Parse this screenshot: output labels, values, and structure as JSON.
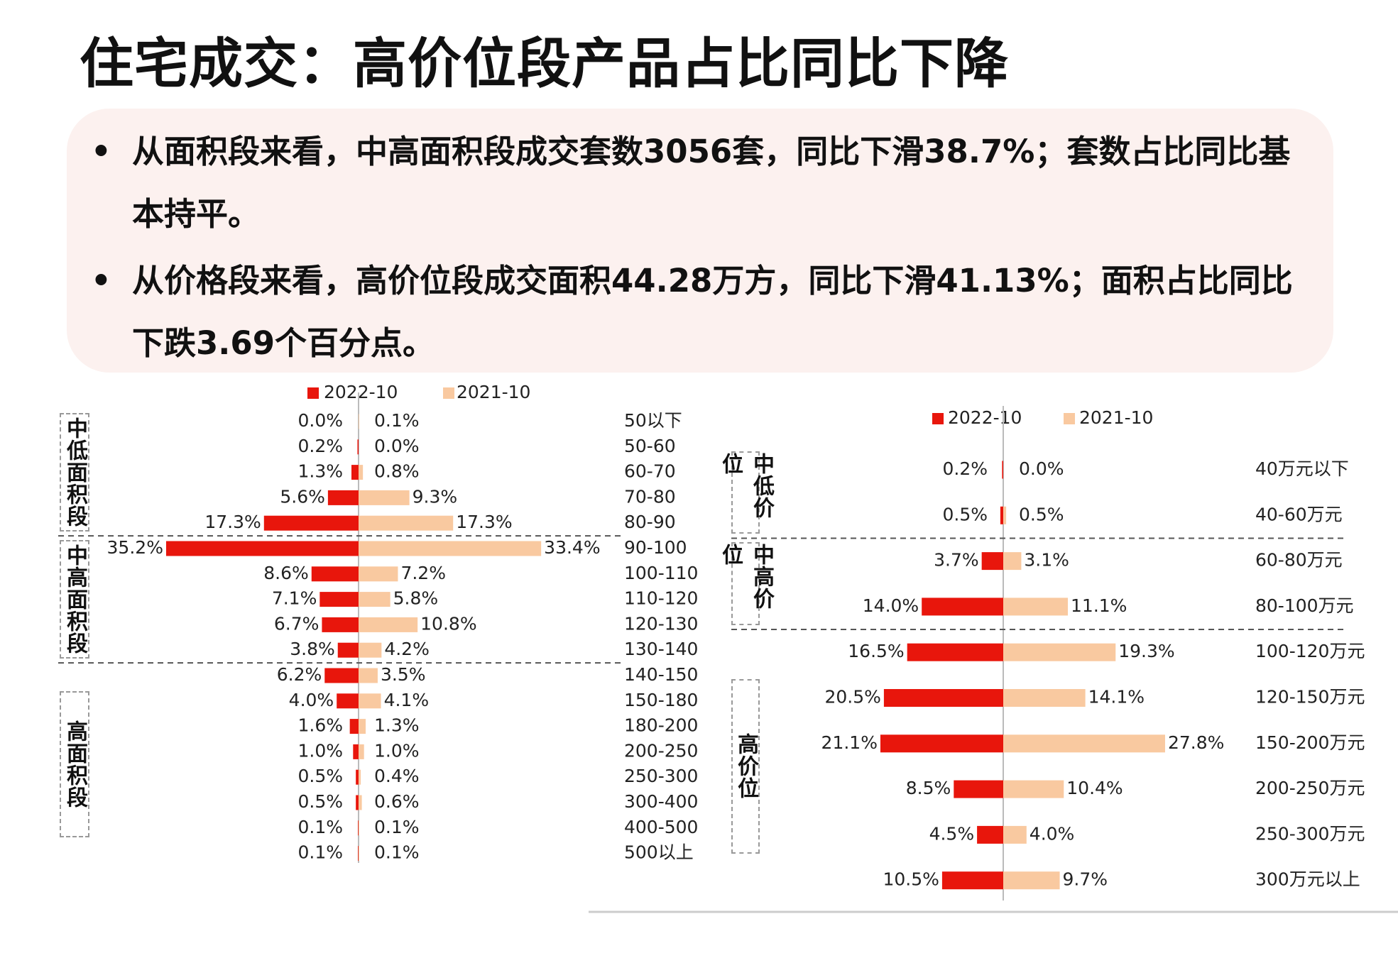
{
  "title": "住宅成交：高价位段产品占比同比下降",
  "bullets": [
    "从面积段来看，中高面积段成交套数3056套，同比下滑38.7%；套数占比同比基本持平。",
    "从价格段来看，高价位段成交面积44.28万方，同比下滑41.13%；面积占比同比下跌3.69个百分点。"
  ],
  "chart_data": [
    {
      "type": "butterfly",
      "groups": [
        {
          "label": "中低面积段",
          "categories": [
            "50以下",
            "50-60",
            "60-70",
            "70-80",
            "80-90"
          ]
        },
        {
          "label": "中高面积段",
          "categories": [
            "90-100",
            "100-110",
            "110-120",
            "120-130",
            "130-140"
          ]
        },
        {
          "label": "高面积段",
          "categories": [
            "140-150",
            "150-180",
            "180-200",
            "200-250",
            "250-300",
            "300-400",
            "400-500",
            "500以上"
          ]
        }
      ],
      "series": [
        {
          "name": "2022-10",
          "color": "#e8160c",
          "values": [
            0.0,
            0.2,
            1.3,
            5.6,
            17.3,
            35.2,
            8.6,
            7.1,
            6.7,
            3.8,
            6.2,
            4.0,
            1.6,
            1.0,
            0.5,
            0.5,
            0.1,
            0.1
          ],
          "value_labels": [
            "0.0%",
            "0.2%",
            "1.3%",
            "5.6%",
            "17.3%",
            "35.2%",
            "8.6%",
            "7.1%",
            "6.7%",
            "3.8%",
            "6.2%",
            "4.0%",
            "1.6%",
            "1.0%",
            "0.5%",
            "0.5%",
            "0.1%",
            "0.1%"
          ]
        },
        {
          "name": "2021-10",
          "color": "#f9c9a0",
          "values": [
            0.1,
            0.0,
            0.8,
            9.3,
            17.3,
            33.4,
            7.2,
            5.8,
            10.8,
            4.2,
            3.5,
            4.1,
            1.3,
            1.0,
            0.4,
            0.6,
            0.1,
            0.1
          ],
          "value_labels": [
            "0.1%",
            "0.0%",
            "0.8%",
            "9.3%",
            "17.3%",
            "33.4%",
            "7.2%",
            "5.8%",
            "10.8%",
            "4.2%",
            "3.5%",
            "4.1%",
            "1.3%",
            "1.0%",
            "0.4%",
            "0.6%",
            "0.1%",
            "0.1%"
          ]
        }
      ]
    },
    {
      "type": "butterfly",
      "groups": [
        {
          "label": "中低价位",
          "categories": [
            "40万元以下",
            "40-60万元"
          ]
        },
        {
          "label": "中高价位",
          "categories": [
            "60-80万元",
            "80-100万元"
          ]
        },
        {
          "label": "高价位",
          "categories": [
            "100-120万元",
            "120-150万元",
            "150-200万元",
            "200-250万元",
            "250-300万元",
            "300万元以上"
          ]
        }
      ],
      "series": [
        {
          "name": "2022-10",
          "color": "#e8160c",
          "values": [
            0.2,
            0.5,
            3.7,
            14.0,
            16.5,
            20.5,
            21.1,
            8.5,
            4.5,
            10.5
          ],
          "value_labels": [
            "0.2%",
            "0.5%",
            "3.7%",
            "14.0%",
            "16.5%",
            "20.5%",
            "21.1%",
            "8.5%",
            "4.5%",
            "10.5%"
          ]
        },
        {
          "name": "2021-10",
          "color": "#f9c9a0",
          "values": [
            0.0,
            0.5,
            3.1,
            11.1,
            19.3,
            14.1,
            27.8,
            10.4,
            4.0,
            9.7
          ],
          "value_labels": [
            "0.0%",
            "0.5%",
            "3.1%",
            "11.1%",
            "19.3%",
            "14.1%",
            "27.8%",
            "10.4%",
            "4.0%",
            "9.7%"
          ]
        }
      ]
    }
  ]
}
